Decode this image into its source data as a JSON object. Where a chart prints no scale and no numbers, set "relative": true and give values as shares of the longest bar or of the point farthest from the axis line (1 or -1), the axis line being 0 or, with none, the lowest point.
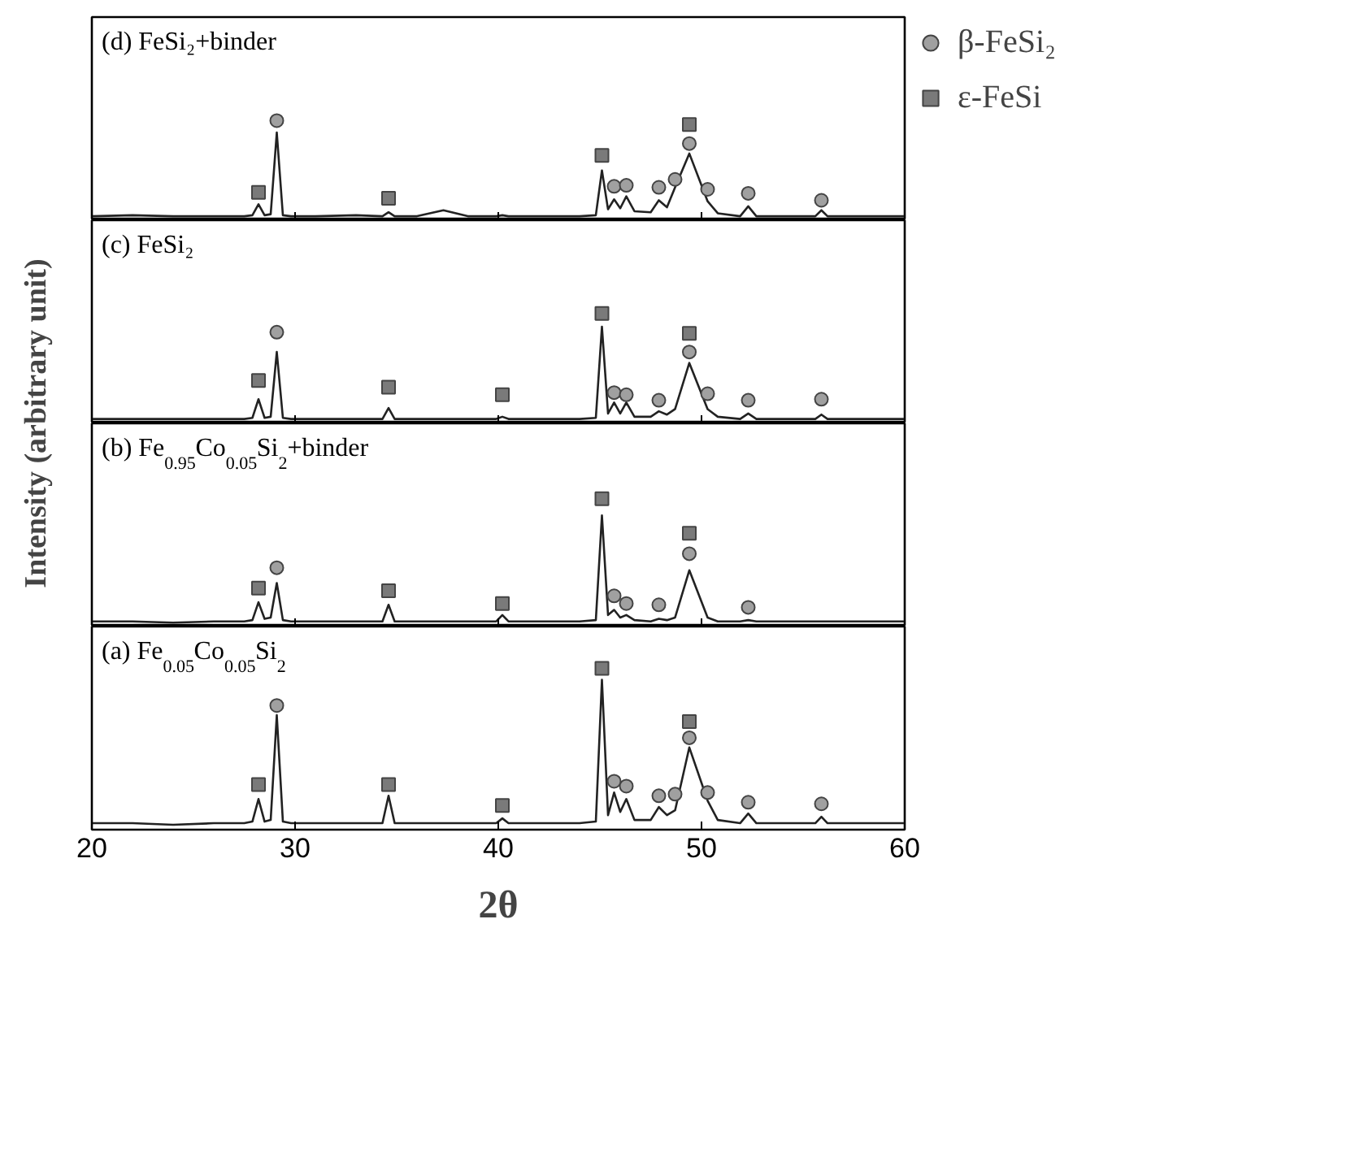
{
  "chart_data": [
    {
      "type": "line",
      "title": "(d) FeSi₂+binder",
      "relative": true,
      "tick_labels": false,
      "legend": "right",
      "ylabel": "Intensity (arbitrary unit)",
      "xlim": [
        20,
        60
      ],
      "xticks": [
        20,
        30,
        40,
        50,
        60
      ],
      "x": [
        20,
        22,
        24,
        26,
        27.5,
        27.9,
        28.2,
        28.5,
        28.8,
        29.1,
        29.4,
        29.8,
        31,
        33,
        34.3,
        34.6,
        34.9,
        36,
        37.3,
        38.5,
        39.9,
        40.2,
        40.5,
        42,
        44,
        44.8,
        45.1,
        45.4,
        45.7,
        46.0,
        46.3,
        46.7,
        47.5,
        47.9,
        48.3,
        48.7,
        49.4,
        50.3,
        50.8,
        51.9,
        52.3,
        52.7,
        54,
        55.6,
        55.9,
        56.2,
        58,
        60
      ],
      "series": [
        {
          "color": "#222222",
          "values": [
            0.04,
            0.05,
            0.04,
            0.04,
            0.04,
            0.05,
            0.16,
            0.05,
            0.06,
            0.88,
            0.05,
            0.04,
            0.04,
            0.05,
            0.04,
            0.08,
            0.04,
            0.04,
            0.1,
            0.04,
            0.04,
            0.05,
            0.04,
            0.04,
            0.04,
            0.05,
            0.5,
            0.11,
            0.21,
            0.12,
            0.24,
            0.09,
            0.08,
            0.2,
            0.13,
            0.33,
            0.67,
            0.19,
            0.07,
            0.04,
            0.14,
            0.04,
            0.04,
            0.04,
            0.1,
            0.04,
            0.04,
            0.04
          ]
        },
        {
          "type": "scatter",
          "name": "β-FeSi₂",
          "marker": "circle",
          "color": "#a0a0a0",
          "x": [
            29.1,
            45.7,
            46.3,
            47.9,
            48.7,
            49.4,
            50.3,
            52.3,
            55.9
          ],
          "values": [
            1,
            0.34,
            0.35,
            0.33,
            0.41,
            0.77,
            0.31,
            0.27,
            0.2
          ]
        },
        {
          "type": "scatter",
          "name": "ε-FeSi",
          "marker": "square",
          "color": "#7a7a7a",
          "x": [
            28.2,
            34.6,
            45.1,
            49.4
          ],
          "values": [
            0.28,
            0.22,
            0.65,
            0.96
          ]
        }
      ]
    },
    {
      "type": "line",
      "title": "(c) FeSi₂",
      "relative": true,
      "tick_labels": false,
      "xlim": [
        20,
        60
      ],
      "xticks": [
        20,
        30,
        40,
        50,
        60
      ],
      "x": [
        20,
        22,
        24,
        26,
        27.5,
        27.9,
        28.2,
        28.5,
        28.8,
        29.1,
        29.4,
        29.8,
        31,
        33,
        34.3,
        34.6,
        34.9,
        36,
        37.3,
        38.5,
        39.9,
        40.2,
        40.5,
        42,
        44,
        44.8,
        45.1,
        45.4,
        45.7,
        46.0,
        46.3,
        46.7,
        47.5,
        47.9,
        48.3,
        48.7,
        49.4,
        50.3,
        50.8,
        51.9,
        52.3,
        52.7,
        54,
        55.6,
        55.9,
        56.2,
        58,
        60
      ],
      "series": [
        {
          "color": "#222222",
          "values": [
            0.04,
            0.04,
            0.04,
            0.04,
            0.04,
            0.05,
            0.22,
            0.05,
            0.06,
            0.65,
            0.05,
            0.04,
            0.04,
            0.04,
            0.04,
            0.14,
            0.04,
            0.04,
            0.04,
            0.04,
            0.04,
            0.06,
            0.04,
            0.04,
            0.04,
            0.05,
            0.88,
            0.09,
            0.19,
            0.09,
            0.19,
            0.06,
            0.06,
            0.11,
            0.08,
            0.13,
            0.55,
            0.13,
            0.06,
            0.04,
            0.09,
            0.04,
            0.04,
            0.04,
            0.08,
            0.04,
            0.04,
            0.04
          ]
        },
        {
          "type": "scatter",
          "marker": "circle",
          "color": "#a0a0a0",
          "x": [
            29.1,
            45.7,
            46.3,
            47.9,
            49.4,
            50.3,
            52.3,
            55.9
          ],
          "values": [
            0.83,
            0.28,
            0.26,
            0.21,
            0.65,
            0.27,
            0.21,
            0.22
          ]
        },
        {
          "type": "scatter",
          "marker": "square",
          "color": "#7a7a7a",
          "x": [
            28.2,
            34.6,
            40.2,
            45.1,
            49.4
          ],
          "values": [
            0.39,
            0.33,
            0.26,
            1,
            0.82
          ]
        }
      ]
    },
    {
      "type": "line",
      "title": "(b) Fe$_{0.95}$Co$_{0.05}$Si$_{2}$+binder",
      "relative": true,
      "tick_labels": false,
      "xlim": [
        20,
        60
      ],
      "xticks": [
        20,
        30,
        40,
        50,
        60
      ],
      "x": [
        20,
        22,
        24,
        26,
        27.5,
        27.9,
        28.2,
        28.5,
        28.8,
        29.1,
        29.4,
        29.8,
        31,
        33,
        34.3,
        34.6,
        34.9,
        36,
        37.3,
        38.5,
        39.9,
        40.2,
        40.5,
        42,
        44,
        44.8,
        45.1,
        45.4,
        45.7,
        46.0,
        46.3,
        46.7,
        47.5,
        47.9,
        48.3,
        48.7,
        49.4,
        50.3,
        50.8,
        51.9,
        52.3,
        52.7,
        54,
        55.6,
        55.9,
        56.2,
        58,
        60
      ],
      "series": [
        {
          "color": "#222222",
          "values": [
            0.04,
            0.04,
            0.03,
            0.04,
            0.04,
            0.05,
            0.19,
            0.06,
            0.07,
            0.34,
            0.05,
            0.04,
            0.04,
            0.04,
            0.04,
            0.17,
            0.04,
            0.04,
            0.04,
            0.04,
            0.04,
            0.09,
            0.04,
            0.04,
            0.04,
            0.05,
            0.87,
            0.09,
            0.13,
            0.07,
            0.09,
            0.05,
            0.04,
            0.06,
            0.05,
            0.07,
            0.44,
            0.07,
            0.04,
            0.04,
            0.05,
            0.04,
            0.04,
            0.04,
            0.04,
            0.04,
            0.04,
            0.04
          ]
        },
        {
          "type": "scatter",
          "marker": "circle",
          "color": "#a0a0a0",
          "x": [
            29.1,
            45.7,
            46.3,
            47.9,
            49.4,
            52.3
          ],
          "values": [
            0.46,
            0.24,
            0.18,
            0.17,
            0.57,
            0.15
          ]
        },
        {
          "type": "scatter",
          "marker": "square",
          "color": "#7a7a7a",
          "x": [
            28.2,
            34.6,
            40.2,
            45.1,
            49.4
          ],
          "values": [
            0.3,
            0.28,
            0.18,
            1,
            0.73
          ]
        }
      ]
    },
    {
      "type": "line",
      "title": "(a) Fe$_{0.05}$Co$_{0.05}$Si$_{2}$",
      "relative": true,
      "tick_labels": "x",
      "xlabel": "2θ",
      "xlim": [
        20,
        60
      ],
      "xticks": [
        20,
        30,
        40,
        50,
        60
      ],
      "x": [
        20,
        22,
        24,
        26,
        27.5,
        27.9,
        28.2,
        28.5,
        28.8,
        29.1,
        29.4,
        29.8,
        31,
        33,
        34.3,
        34.6,
        34.9,
        36,
        37.3,
        38.5,
        39.9,
        40.2,
        40.5,
        42,
        44,
        44.8,
        45.1,
        45.4,
        45.7,
        46.0,
        46.3,
        46.7,
        47.5,
        47.9,
        48.3,
        48.7,
        49.4,
        50.3,
        50.8,
        51.9,
        52.3,
        52.7,
        54,
        55.6,
        55.9,
        56.2,
        58,
        60
      ],
      "series": [
        {
          "color": "#222222",
          "values": [
            0.04,
            0.04,
            0.03,
            0.04,
            0.04,
            0.05,
            0.19,
            0.05,
            0.06,
            0.71,
            0.05,
            0.04,
            0.04,
            0.04,
            0.04,
            0.21,
            0.04,
            0.04,
            0.04,
            0.04,
            0.04,
            0.07,
            0.04,
            0.04,
            0.04,
            0.05,
            0.93,
            0.09,
            0.23,
            0.11,
            0.19,
            0.06,
            0.06,
            0.14,
            0.09,
            0.12,
            0.51,
            0.18,
            0.06,
            0.04,
            0.1,
            0.04,
            0.04,
            0.04,
            0.08,
            0.04,
            0.04,
            0.04
          ]
        },
        {
          "type": "scatter",
          "marker": "circle",
          "color": "#a0a0a0",
          "x": [
            29.1,
            45.7,
            46.3,
            47.9,
            48.7,
            49.4,
            50.3,
            52.3,
            55.9
          ],
          "values": [
            0.77,
            0.3,
            0.27,
            0.21,
            0.22,
            0.57,
            0.23,
            0.17,
            0.16
          ]
        },
        {
          "type": "scatter",
          "marker": "square",
          "color": "#7a7a7a",
          "x": [
            28.2,
            34.6,
            40.2,
            45.1,
            49.4
          ],
          "values": [
            0.28,
            0.28,
            0.15,
            1,
            0.67
          ]
        }
      ]
    }
  ]
}
